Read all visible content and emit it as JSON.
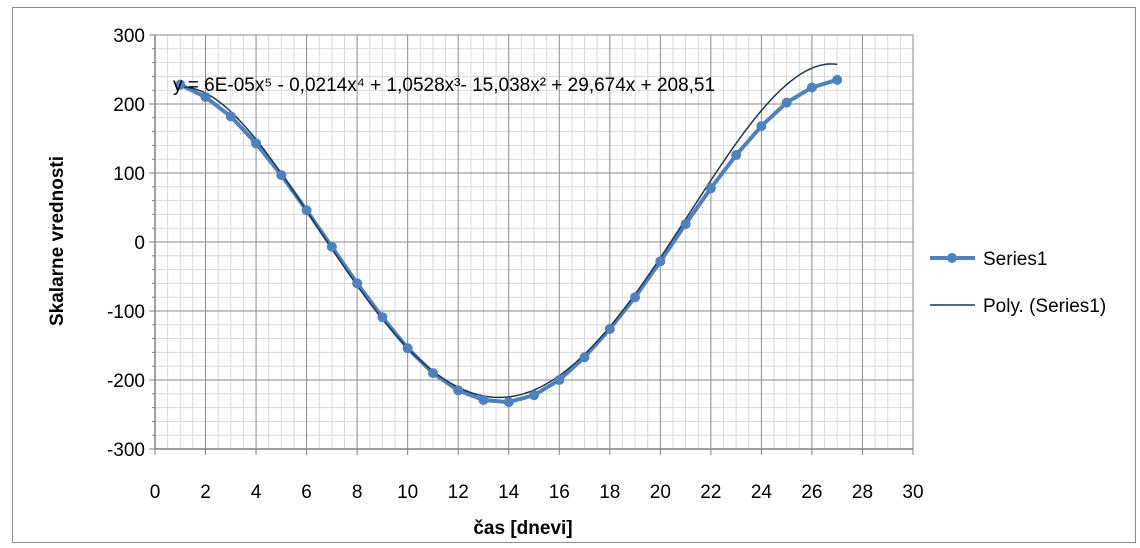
{
  "chart_data": {
    "type": "line",
    "title": "",
    "xlabel": "čas [dnevi]",
    "ylabel": "Skalarne vrednosti",
    "xlim": [
      0,
      30
    ],
    "ylim": [
      -300,
      300
    ],
    "x_ticks": [
      0,
      2,
      4,
      6,
      8,
      10,
      12,
      14,
      16,
      18,
      20,
      22,
      24,
      26,
      28,
      30
    ],
    "y_ticks": [
      300,
      200,
      100,
      0,
      -100,
      -200,
      -300
    ],
    "y_tick_labels": [
      "300",
      "200",
      "100",
      "0",
      "-100",
      "-200",
      "-300"
    ],
    "grid": true,
    "legend_position": "right",
    "series": [
      {
        "name": "Series1",
        "color": "#4f81bd",
        "marker": "circle",
        "x": [
          1,
          2,
          3,
          4,
          5,
          6,
          7,
          8,
          9,
          10,
          11,
          12,
          13,
          14,
          15,
          16,
          17,
          18,
          19,
          20,
          21,
          22,
          23,
          24,
          25,
          26,
          27
        ],
        "y": [
          228,
          210,
          182,
          143,
          97,
          46,
          -7,
          -60,
          -109,
          -154,
          -190,
          -215,
          -229,
          -232,
          -222,
          -200,
          -167,
          -126,
          -80,
          -28,
          26,
          78,
          126,
          168,
          202,
          224,
          235
        ]
      },
      {
        "name": "Poly. (Series1)",
        "color": "#1f3550",
        "type": "trendline",
        "fit": "polynomial-5",
        "coefficients": [
          6e-05,
          -0.0214,
          1.0528,
          -15.038,
          29.674,
          208.51
        ],
        "x_range": [
          1,
          27
        ]
      }
    ],
    "annotations": [
      {
        "text": "y = 6E-05x⁵ - 0,0214x⁴ + 1,0528x³- 15,038x² + 29,674x + 208,51"
      }
    ]
  }
}
